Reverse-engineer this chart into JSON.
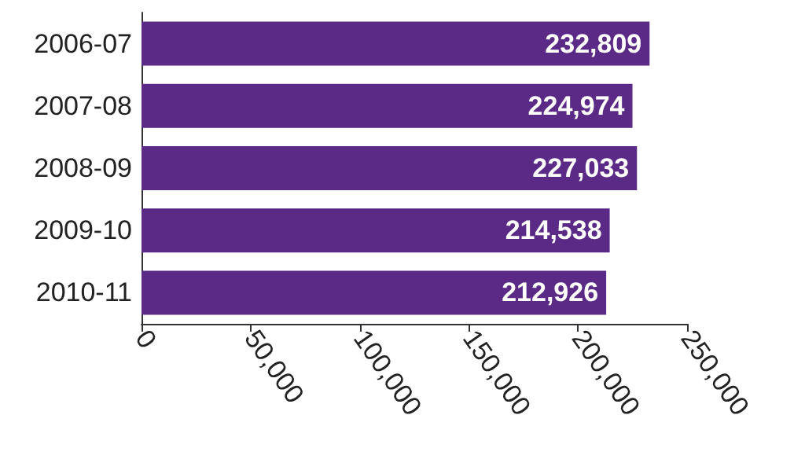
{
  "chart_data": {
    "type": "bar",
    "orientation": "horizontal",
    "categories": [
      "2006-07",
      "2007-08",
      "2008-09",
      "2009-10",
      "2010-11"
    ],
    "values": [
      232809,
      224974,
      227033,
      214538,
      212926
    ],
    "color": "#5b2a86",
    "value_labels": [
      "232,809",
      "224,974",
      "227,033",
      "214,538",
      "212,926"
    ],
    "xlim": [
      0,
      250000
    ],
    "xticks": [
      {
        "value": 0,
        "label": "0"
      },
      {
        "value": 50000,
        "label": "50,000"
      },
      {
        "value": 100000,
        "label": "100,000"
      },
      {
        "value": 150000,
        "label": "150,000"
      },
      {
        "value": 200000,
        "label": "200,000"
      },
      {
        "value": 250000,
        "label": "250,000"
      }
    ],
    "grid": false
  }
}
